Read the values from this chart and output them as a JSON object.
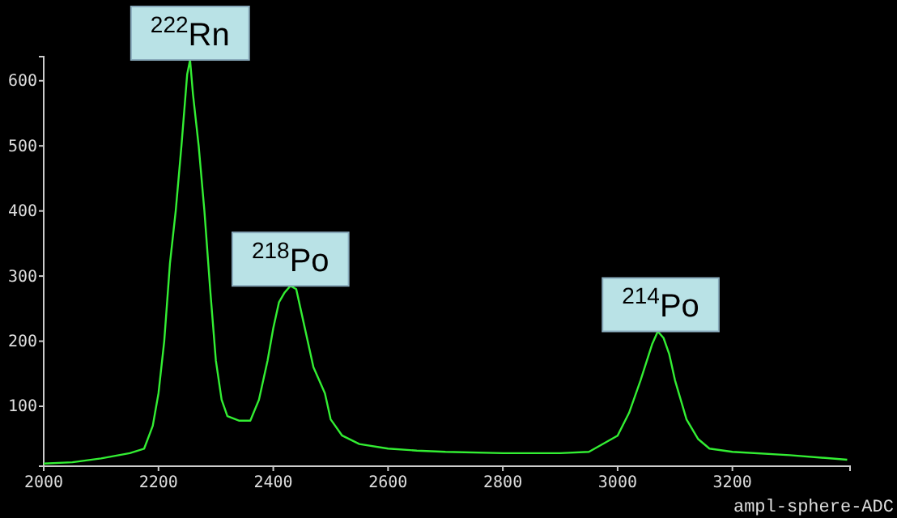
{
  "chart_data": {
    "type": "line",
    "xlabel": "ampl-sphere-ADC",
    "x": [
      2000,
      2050,
      2100,
      2150,
      2175,
      2190,
      2200,
      2210,
      2220,
      2230,
      2240,
      2250,
      2255,
      2260,
      2270,
      2280,
      2290,
      2300,
      2310,
      2320,
      2340,
      2360,
      2375,
      2390,
      2400,
      2410,
      2420,
      2430,
      2440,
      2450,
      2460,
      2470,
      2480,
      2490,
      2500,
      2520,
      2550,
      2600,
      2650,
      2700,
      2800,
      2900,
      2950,
      2980,
      3000,
      3020,
      3040,
      3060,
      3070,
      3080,
      3090,
      3100,
      3120,
      3140,
      3160,
      3200,
      3300,
      3400
    ],
    "series": [
      {
        "color": "#33ee33",
        "values": [
          12,
          14,
          20,
          28,
          35,
          70,
          120,
          200,
          320,
          400,
          500,
          610,
          632,
          580,
          500,
          400,
          280,
          170,
          110,
          85,
          78,
          78,
          110,
          170,
          220,
          260,
          275,
          285,
          280,
          240,
          200,
          160,
          140,
          120,
          80,
          55,
          42,
          35,
          32,
          30,
          28,
          28,
          30,
          45,
          55,
          90,
          140,
          195,
          215,
          205,
          180,
          140,
          80,
          50,
          35,
          30,
          25,
          18
        ]
      }
    ],
    "xlim": [
      2000,
      3405
    ],
    "ylim": [
      8,
      637
    ],
    "xticks": [
      2000,
      2200,
      2400,
      2600,
      2800,
      3000,
      3200
    ],
    "yticks": [
      100,
      200,
      300,
      400,
      500,
      600
    ],
    "grid": false,
    "annotations": [
      {
        "text": "$^{222}$Rn",
        "x": 2255,
        "y": 632
      },
      {
        "text": "$^{218}$Po",
        "x": 2430,
        "y": 285
      },
      {
        "text": "$^{214}$Po",
        "x": 3075,
        "y": 215
      }
    ]
  }
}
